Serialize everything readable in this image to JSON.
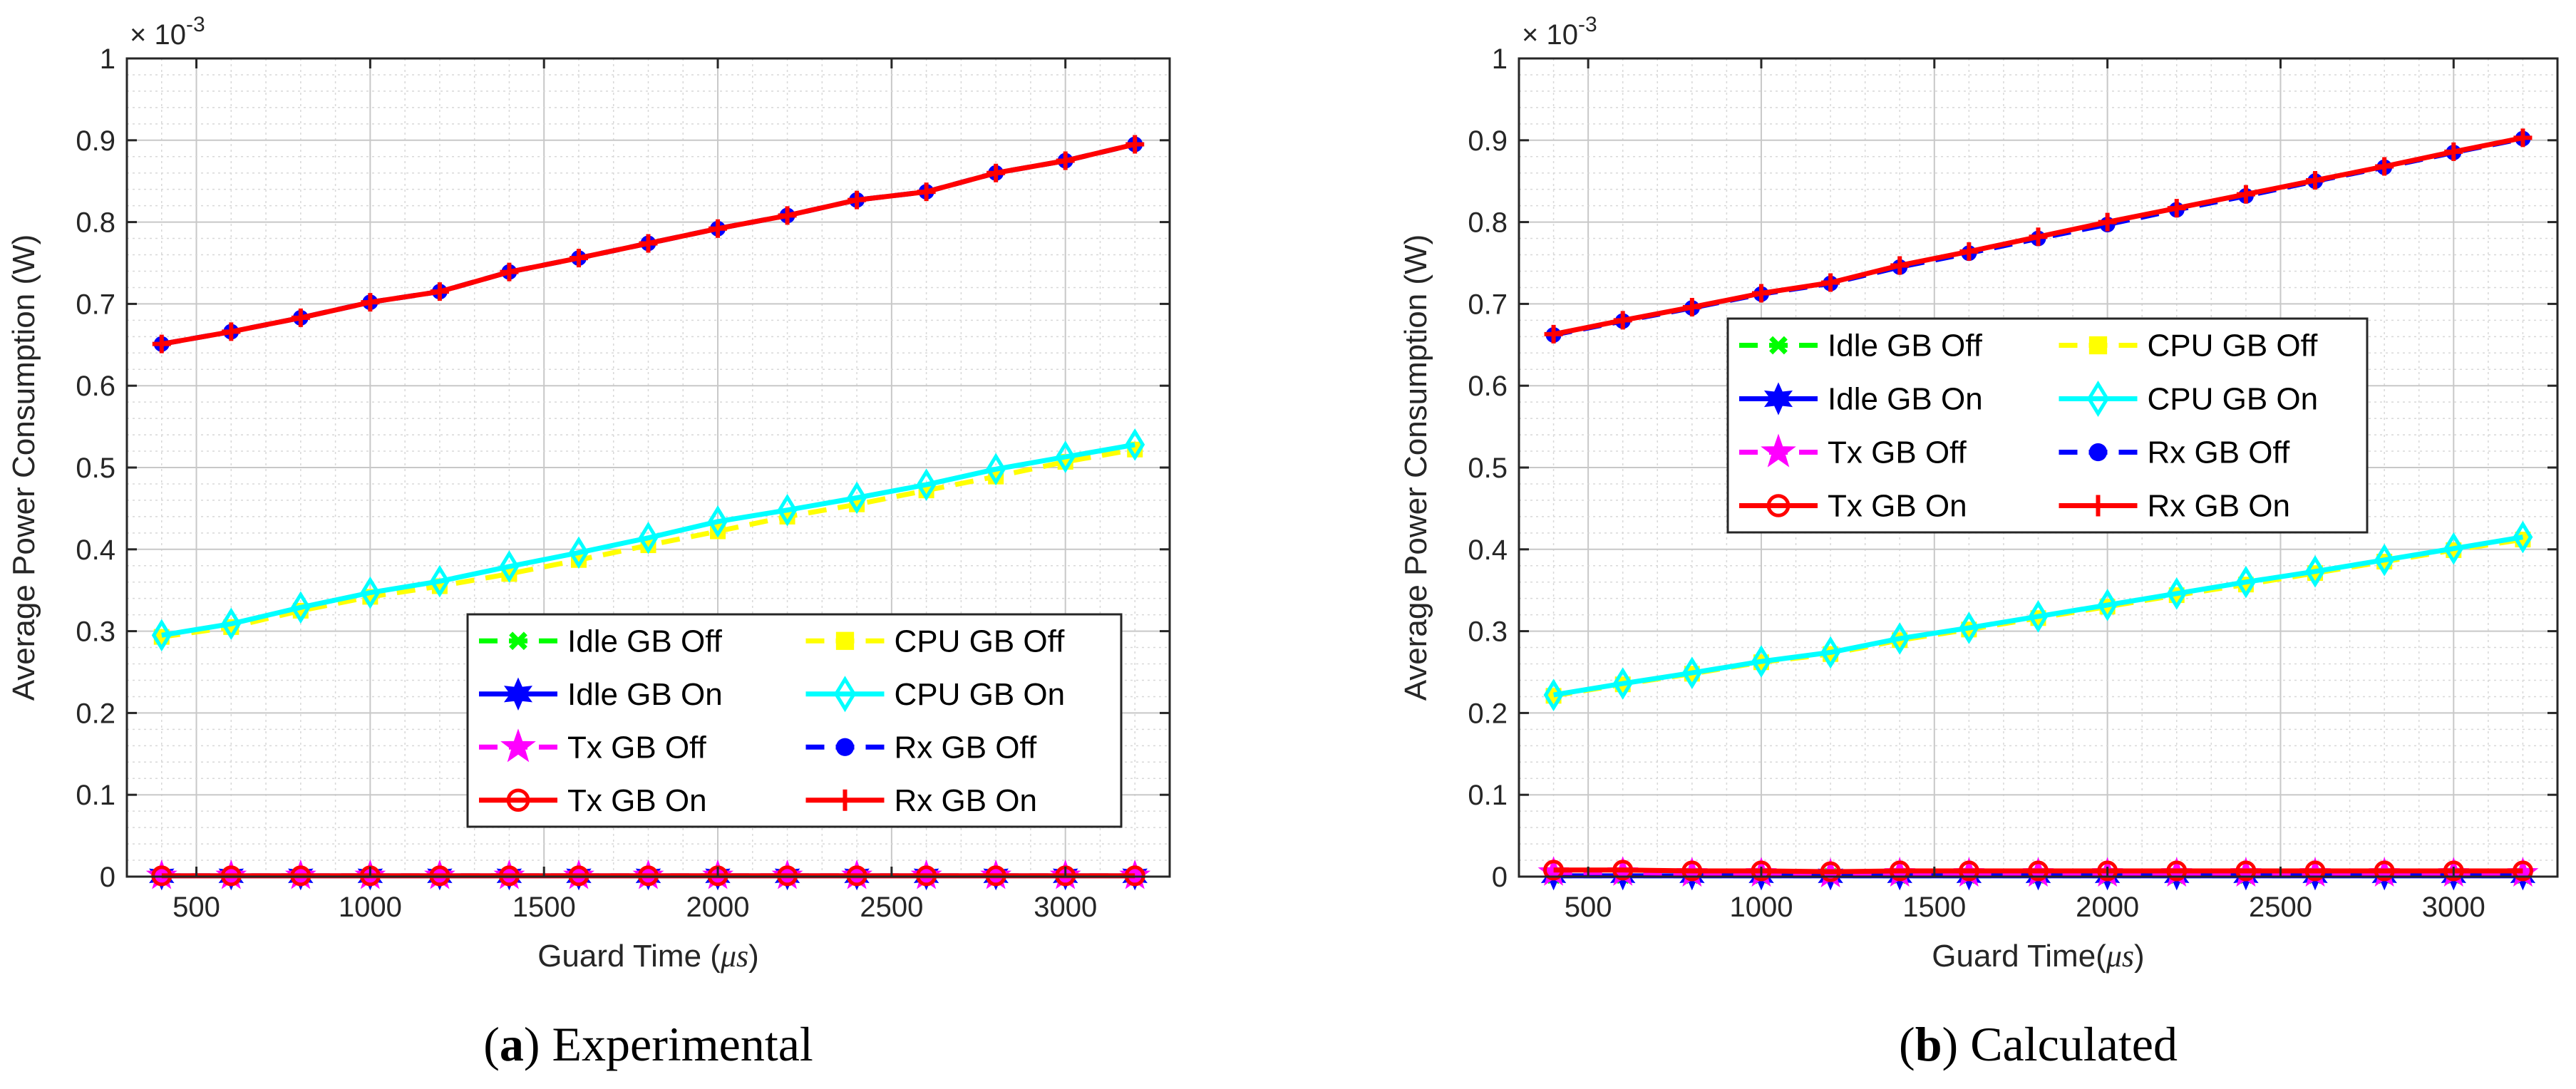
{
  "chart_data": [
    {
      "type": "line",
      "caption_letter": "a",
      "caption_text": "Experimental",
      "xlabel_prefix": "Guard Time (",
      "xlabel_unit": "μs",
      "xlabel_suffix": ")",
      "ylabel": "Average Power Consumption (W)",
      "exponent_base": "× 10",
      "exponent_power": "-3",
      "xlim": [
        300,
        3300
      ],
      "ylim": [
        0,
        1
      ],
      "xticks": [
        "500",
        "1000",
        "1500",
        "2000",
        "2500",
        "3000"
      ],
      "yticks": [
        "0",
        "0.1",
        "0.2",
        "0.3",
        "0.4",
        "0.5",
        "0.6",
        "0.7",
        "0.8",
        "0.9",
        "1"
      ],
      "grid": true,
      "legend_position": "lower-right",
      "x": [
        400,
        600,
        800,
        1000,
        1200,
        1400,
        1600,
        1800,
        2000,
        2200,
        2400,
        2600,
        2800,
        3000,
        3200
      ],
      "series": [
        {
          "name": "Idle GB Off",
          "color": "#00ff00",
          "dash": true,
          "marker": "x",
          "values": [
            0.001,
            0.001,
            0.001,
            0.001,
            0.001,
            0.001,
            0.001,
            0.001,
            0.001,
            0.001,
            0.001,
            0.001,
            0.001,
            0.001,
            0.001
          ]
        },
        {
          "name": "CPU GB Off",
          "color": "#ffff00",
          "dash": true,
          "marker": "square",
          "values": [
            0.293,
            0.305,
            0.325,
            0.342,
            0.355,
            0.37,
            0.387,
            0.405,
            0.422,
            0.44,
            0.455,
            0.472,
            0.489,
            0.507,
            0.522
          ]
        },
        {
          "name": "Idle GB On",
          "color": "#0000ff",
          "dash": false,
          "marker": "hexagram",
          "values": [
            0.001,
            0.001,
            0.001,
            0.001,
            0.001,
            0.001,
            0.001,
            0.001,
            0.001,
            0.001,
            0.001,
            0.001,
            0.001,
            0.001,
            0.001
          ]
        },
        {
          "name": "CPU GB On",
          "color": "#00ffff",
          "dash": false,
          "marker": "diamond",
          "values": [
            0.295,
            0.309,
            0.329,
            0.347,
            0.361,
            0.379,
            0.396,
            0.414,
            0.434,
            0.448,
            0.463,
            0.479,
            0.498,
            0.513,
            0.528
          ]
        },
        {
          "name": "Tx GB Off",
          "color": "#ff00ff",
          "dash": true,
          "marker": "pentagram",
          "values": [
            0.001,
            0.001,
            0.001,
            0.001,
            0.001,
            0.001,
            0.001,
            0.001,
            0.001,
            0.001,
            0.001,
            0.001,
            0.001,
            0.001,
            0.001
          ]
        },
        {
          "name": "Rx GB Off",
          "color": "#0000ff",
          "dash": true,
          "marker": "dot",
          "values": [
            0.651,
            0.666,
            0.683,
            0.702,
            0.715,
            0.739,
            0.756,
            0.774,
            0.792,
            0.808,
            0.827,
            0.837,
            0.86,
            0.875,
            0.895
          ]
        },
        {
          "name": "Tx GB On",
          "color": "#ff0000",
          "dash": false,
          "marker": "circle",
          "values": [
            0.001,
            0.001,
            0.001,
            0.001,
            0.001,
            0.001,
            0.001,
            0.001,
            0.001,
            0.001,
            0.001,
            0.001,
            0.001,
            0.001,
            0.001
          ]
        },
        {
          "name": "Rx GB On",
          "color": "#ff0000",
          "dash": false,
          "marker": "plus",
          "values": [
            0.651,
            0.666,
            0.683,
            0.702,
            0.715,
            0.739,
            0.756,
            0.774,
            0.792,
            0.808,
            0.827,
            0.837,
            0.86,
            0.875,
            0.895
          ]
        }
      ]
    },
    {
      "type": "line",
      "caption_letter": "b",
      "caption_text": "Calculated",
      "xlabel_prefix": "Guard Time(",
      "xlabel_unit": "μs",
      "xlabel_suffix": ")",
      "ylabel": "Average Power Consumption (W)",
      "exponent_base": "× 10",
      "exponent_power": "-3",
      "xlim": [
        300,
        3300
      ],
      "ylim": [
        0,
        1
      ],
      "xticks": [
        "500",
        "1000",
        "1500",
        "2000",
        "2500",
        "3000"
      ],
      "yticks": [
        "0",
        "0.1",
        "0.2",
        "0.3",
        "0.4",
        "0.5",
        "0.6",
        "0.7",
        "0.8",
        "0.9",
        "1"
      ],
      "grid": true,
      "legend_position": "upper-center",
      "x": [
        400,
        600,
        800,
        1000,
        1200,
        1400,
        1600,
        1800,
        2000,
        2200,
        2400,
        2600,
        2800,
        3000,
        3200
      ],
      "series": [
        {
          "name": "Idle GB Off",
          "color": "#00ff00",
          "dash": true,
          "marker": "x",
          "values": [
            0.001,
            0.001,
            0.001,
            0.001,
            0.001,
            0.001,
            0.001,
            0.001,
            0.001,
            0.001,
            0.001,
            0.001,
            0.001,
            0.001,
            0.001
          ]
        },
        {
          "name": "CPU GB Off",
          "color": "#ffff00",
          "dash": true,
          "marker": "square",
          "values": [
            0.221,
            0.235,
            0.248,
            0.262,
            0.272,
            0.289,
            0.302,
            0.316,
            0.33,
            0.344,
            0.357,
            0.371,
            0.385,
            0.399,
            0.412
          ]
        },
        {
          "name": "Idle GB On",
          "color": "#0000ff",
          "dash": false,
          "marker": "hexagram",
          "values": [
            0.001,
            0.001,
            0.001,
            0.001,
            0.001,
            0.001,
            0.001,
            0.001,
            0.001,
            0.001,
            0.001,
            0.001,
            0.001,
            0.001,
            0.001
          ]
        },
        {
          "name": "CPU GB On",
          "color": "#00ffff",
          "dash": false,
          "marker": "diamond",
          "values": [
            0.222,
            0.236,
            0.249,
            0.263,
            0.274,
            0.291,
            0.304,
            0.318,
            0.332,
            0.346,
            0.36,
            0.373,
            0.387,
            0.401,
            0.415
          ]
        },
        {
          "name": "Tx GB Off",
          "color": "#ff00ff",
          "dash": true,
          "marker": "pentagram",
          "values": [
            0.005,
            0.005,
            0.004,
            0.004,
            0.003,
            0.004,
            0.004,
            0.004,
            0.004,
            0.004,
            0.004,
            0.004,
            0.004,
            0.004,
            0.004
          ]
        },
        {
          "name": "Rx GB Off",
          "color": "#0000ff",
          "dash": true,
          "marker": "dot",
          "values": [
            0.662,
            0.679,
            0.695,
            0.712,
            0.725,
            0.745,
            0.762,
            0.78,
            0.797,
            0.815,
            0.832,
            0.85,
            0.867,
            0.885,
            0.902
          ]
        },
        {
          "name": "Tx GB On",
          "color": "#ff0000",
          "dash": false,
          "marker": "circle",
          "values": [
            0.008,
            0.008,
            0.007,
            0.007,
            0.006,
            0.007,
            0.007,
            0.007,
            0.007,
            0.007,
            0.007,
            0.007,
            0.007,
            0.007,
            0.007
          ]
        },
        {
          "name": "Rx GB On",
          "color": "#ff0000",
          "dash": false,
          "marker": "plus",
          "values": [
            0.663,
            0.68,
            0.696,
            0.713,
            0.726,
            0.747,
            0.764,
            0.782,
            0.8,
            0.817,
            0.834,
            0.851,
            0.868,
            0.886,
            0.903
          ]
        }
      ]
    }
  ]
}
